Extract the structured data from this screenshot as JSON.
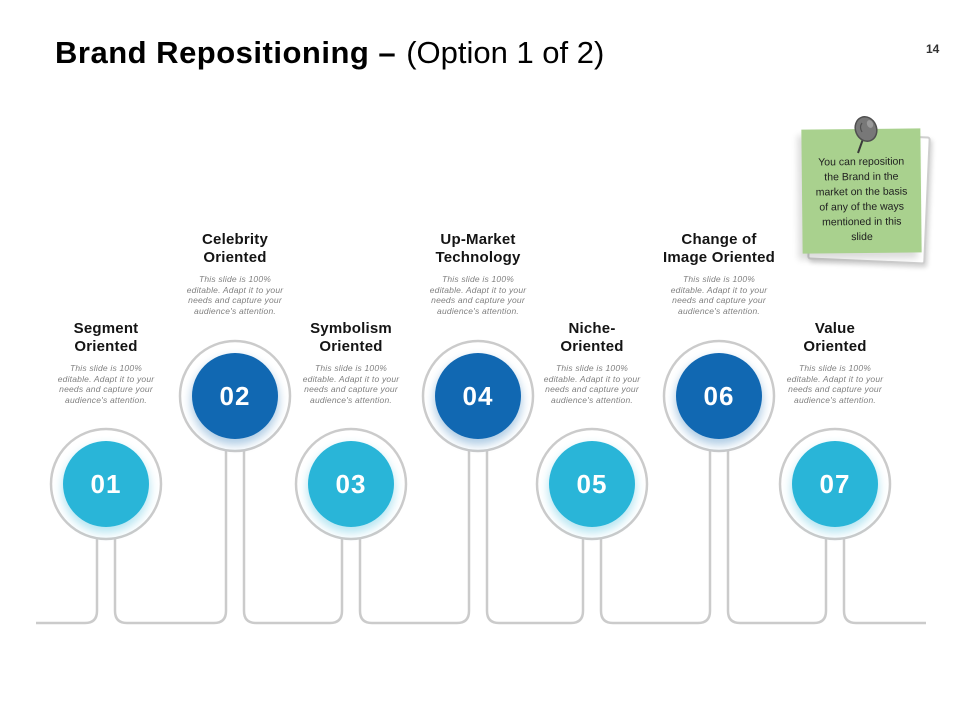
{
  "slide": {
    "title_bold": "Brand Repositioning –",
    "title_light": "(Option 1 of 2)",
    "page_number": "14"
  },
  "note": {
    "text": "You can reposition\nthe Brand in the\nmarket on the basis\nof any of the ways\nmentioned in this\nslide",
    "bg_color": "#A9D18E",
    "pin_icon": "push-pin"
  },
  "colors": {
    "cyan_circle": "#29B5D8",
    "blue_circle": "#1168B2",
    "connector_gray": "#CBCBCB",
    "heading_text": "#141414",
    "description_text": "#808080"
  },
  "items": [
    {
      "number": "01",
      "title": "Segment\nOriented",
      "description": "This slide is 100%\neditable.  Adapt it to your\nneeds and capture your\naudience's attention.",
      "color": "#29B5D8",
      "row": "bottom"
    },
    {
      "number": "02",
      "title": "Celebrity\nOriented",
      "description": "This slide is 100%\neditable.  Adapt it to your\nneeds and capture your\naudience's attention.",
      "color": "#1168B2",
      "row": "top"
    },
    {
      "number": "03",
      "title": "Symbolism\nOriented",
      "description": "This slide is 100%\neditable.  Adapt it to your\nneeds and capture your\naudience's attention.",
      "color": "#29B5D8",
      "row": "bottom"
    },
    {
      "number": "04",
      "title": "Up-Market\nTechnology",
      "description": "This slide is 100%\neditable.  Adapt it to your\nneeds and capture your\naudience's attention.",
      "color": "#1168B2",
      "row": "top"
    },
    {
      "number": "05",
      "title": "Niche-\nOriented",
      "description": "This slide is 100%\neditable.  Adapt it to your\nneeds and capture your\naudience's attention.",
      "color": "#29B5D8",
      "row": "bottom"
    },
    {
      "number": "06",
      "title": "Change of\nImage Oriented",
      "description": "This slide is 100%\neditable.  Adapt it to your\nneeds and capture your\naudience's attention.",
      "color": "#1168B2",
      "row": "top"
    },
    {
      "number": "07",
      "title": "Value\nOriented",
      "description": "This slide is 100%\neditable.  Adapt it to your\nneeds and capture your\naudience's attention.",
      "color": "#29B5D8",
      "row": "bottom"
    }
  ]
}
